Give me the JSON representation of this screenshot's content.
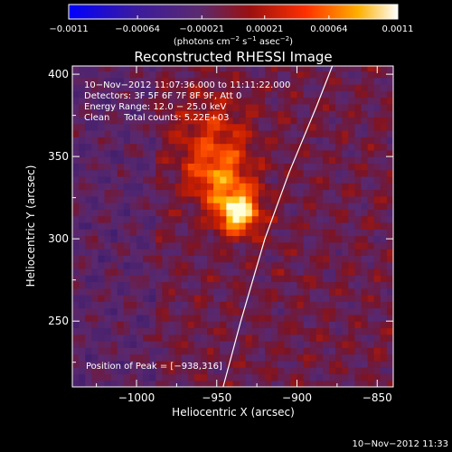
{
  "chart_data": {
    "type": "heatmap",
    "title": "Reconstructed RHESSI Image",
    "xlabel": "Heliocentric X (arcsec)",
    "ylabel": "Heliocentric Y (arcsec)",
    "xlim": [
      -1040,
      -840
    ],
    "ylim": [
      210,
      405
    ],
    "x_ticks": [
      -1000,
      -950,
      -900,
      -850
    ],
    "x_tick_labels": [
      "−1000",
      "−950",
      "−900",
      "−850"
    ],
    "y_ticks": [
      250,
      300,
      350,
      400
    ],
    "y_tick_labels": [
      "250",
      "300",
      "350",
      "400"
    ],
    "colorbar": {
      "range": [
        -0.0011,
        0.0011
      ],
      "ticks": [
        -0.0011,
        -0.00064,
        -0.00021,
        0.00021,
        0.00064,
        0.0011
      ],
      "tick_labels": [
        "−0.0011",
        "−0.00064",
        "−0.00021",
        "0.00021",
        "0.00064",
        "0.0011"
      ],
      "units_text": "(photons cm",
      "units_exp1": "−2",
      "units_mid": " s",
      "units_exp2": "−1",
      "units_mid2": " asec",
      "units_exp3": "−2",
      "units_close": ")"
    },
    "annotations": [
      "10−Nov−2012 11:07:36.000 to 11:11:22.000",
      "Detectors: 3F 5F 6F 7F 8F 9F, Att 0",
      "Energy Range: 12.0 − 25.0 keV",
      "Clean     Total counts: 5.22E+03"
    ],
    "peak_label": "Position of Peak = [−938,316]",
    "peak": {
      "x": -938,
      "y": 316
    },
    "sources": [
      {
        "x": -938,
        "y": 314,
        "sigma": 9,
        "amp": 1.0
      },
      {
        "x": -950,
        "y": 334,
        "sigma": 14,
        "amp": 0.55
      },
      {
        "x": -955,
        "y": 362,
        "sigma": 18,
        "amp": 0.35
      }
    ],
    "limb_curve": [
      {
        "x": -946,
        "y": 210
      },
      {
        "x": -935,
        "y": 250
      },
      {
        "x": -920,
        "y": 300
      },
      {
        "x": -905,
        "y": 340
      },
      {
        "x": -888,
        "y": 380
      },
      {
        "x": -878,
        "y": 405
      }
    ]
  },
  "footer": {
    "timestamp": "10−Nov−2012 11:33"
  }
}
